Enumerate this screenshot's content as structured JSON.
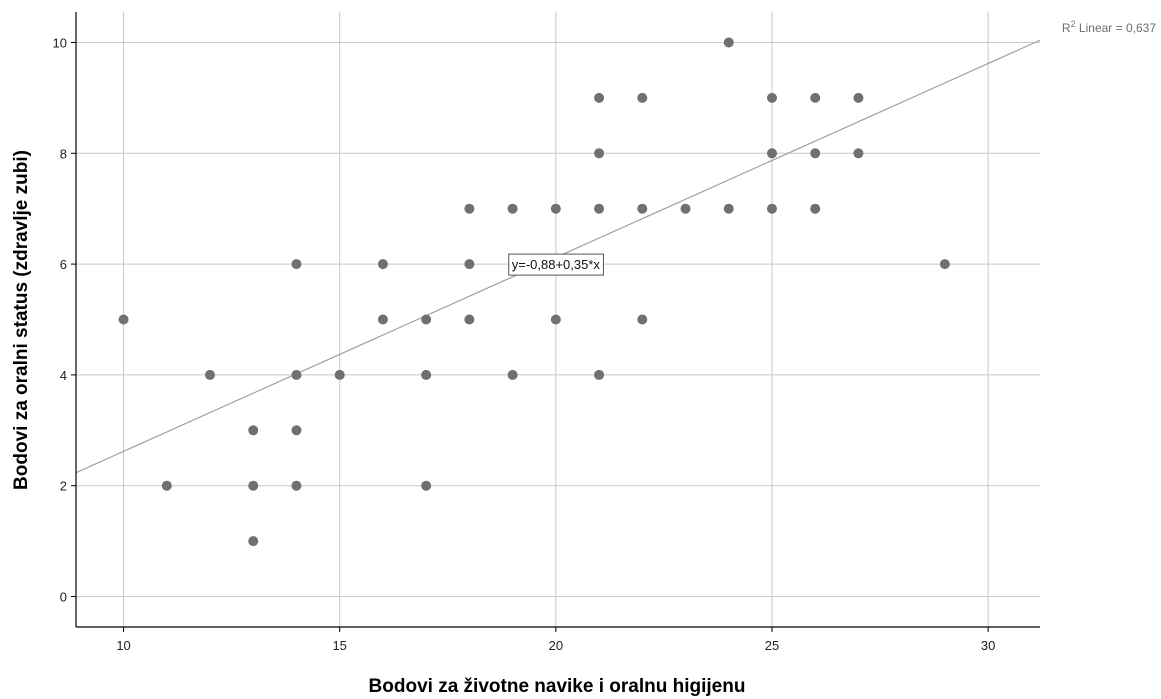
{
  "chart_data": {
    "type": "scatter",
    "xlabel": "Bodovi za životne navike i oralnu higijenu",
    "ylabel": "Bodovi za oralni status (zdravlje zubi)",
    "xlim": [
      8.9,
      31.2
    ],
    "ylim": [
      -0.55,
      10.55
    ],
    "xticks": [
      "10",
      "15",
      "20",
      "25",
      "30"
    ],
    "yticks": [
      "0",
      "2",
      "4",
      "6",
      "8",
      "10"
    ],
    "grid": true,
    "colors": {
      "point": "#707070",
      "grid": "#c8c8c8",
      "fit": "#a0a0a0",
      "axis": "#000000"
    },
    "points": [
      {
        "x": 10,
        "y": 5
      },
      {
        "x": 11,
        "y": 2
      },
      {
        "x": 12,
        "y": 4
      },
      {
        "x": 13,
        "y": 3
      },
      {
        "x": 13,
        "y": 2
      },
      {
        "x": 13,
        "y": 1
      },
      {
        "x": 14,
        "y": 6
      },
      {
        "x": 14,
        "y": 4
      },
      {
        "x": 14,
        "y": 3
      },
      {
        "x": 14,
        "y": 2
      },
      {
        "x": 15,
        "y": 4
      },
      {
        "x": 16,
        "y": 6
      },
      {
        "x": 16,
        "y": 5
      },
      {
        "x": 17,
        "y": 5
      },
      {
        "x": 17,
        "y": 4
      },
      {
        "x": 17,
        "y": 2
      },
      {
        "x": 18,
        "y": 7
      },
      {
        "x": 18,
        "y": 6
      },
      {
        "x": 18,
        "y": 5
      },
      {
        "x": 19,
        "y": 7
      },
      {
        "x": 19,
        "y": 4
      },
      {
        "x": 20,
        "y": 7
      },
      {
        "x": 20,
        "y": 5
      },
      {
        "x": 21,
        "y": 9
      },
      {
        "x": 21,
        "y": 8
      },
      {
        "x": 21,
        "y": 7
      },
      {
        "x": 21,
        "y": 4
      },
      {
        "x": 22,
        "y": 9
      },
      {
        "x": 22,
        "y": 7
      },
      {
        "x": 22,
        "y": 5
      },
      {
        "x": 23,
        "y": 7
      },
      {
        "x": 24,
        "y": 10
      },
      {
        "x": 24,
        "y": 7
      },
      {
        "x": 25,
        "y": 9
      },
      {
        "x": 25,
        "y": 8
      },
      {
        "x": 25,
        "y": 7
      },
      {
        "x": 26,
        "y": 9
      },
      {
        "x": 26,
        "y": 8
      },
      {
        "x": 26,
        "y": 7
      },
      {
        "x": 27,
        "y": 9
      },
      {
        "x": 27,
        "y": 8
      },
      {
        "x": 29,
        "y": 6
      }
    ],
    "fit_line": {
      "intercept": -0.88,
      "slope": 0.35,
      "equation_label": "y=-0,88+0,35*x",
      "r2_label_prefix": "R",
      "r2_label_sup": "2",
      "r2_label_suffix": " Linear = 0,637"
    }
  }
}
